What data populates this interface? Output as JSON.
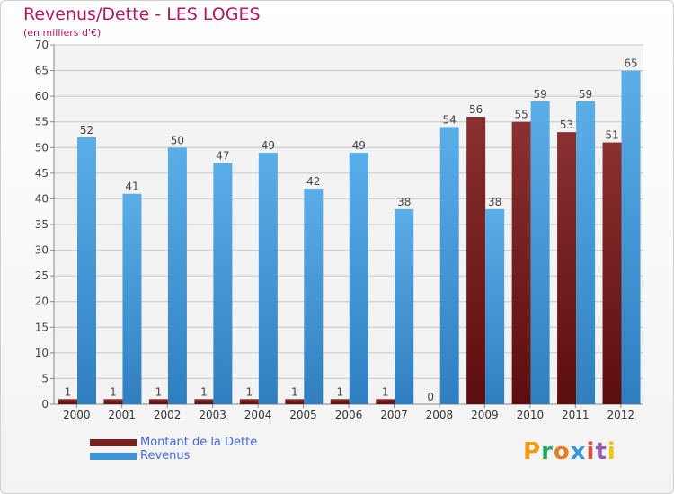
{
  "title": "Revenus/Dette - LES LOGES",
  "subtitle": "(en milliers d'€)",
  "logo": {
    "letters": [
      "P",
      "r",
      "o",
      "x",
      "i",
      "t",
      "i"
    ],
    "colors": [
      "#f39c12",
      "#27ae60",
      "#e67e22",
      "#3498db",
      "#e74c3c",
      "#9b59b6",
      "#f1c40f"
    ]
  },
  "colors": {
    "dette": "#7a1f1f",
    "revenus": "#3d95d6",
    "title": "#b5175e",
    "legend_text": "#4169e1"
  },
  "chart_data": {
    "type": "bar",
    "categories": [
      "2000",
      "2001",
      "2002",
      "2003",
      "2004",
      "2005",
      "2006",
      "2007",
      "2008",
      "2009",
      "2010",
      "2011",
      "2012"
    ],
    "series": [
      {
        "name": "Montant de la Dette",
        "values": [
          1,
          1,
          1,
          1,
          1,
          1,
          1,
          1,
          0,
          56,
          55,
          53,
          51
        ]
      },
      {
        "name": "Revenus",
        "values": [
          52,
          41,
          50,
          47,
          49,
          42,
          49,
          38,
          54,
          38,
          59,
          59,
          65
        ]
      }
    ],
    "ylim": [
      0,
      70
    ],
    "yticks": [
      0,
      5,
      10,
      15,
      20,
      25,
      30,
      35,
      40,
      45,
      50,
      55,
      60,
      65,
      70
    ],
    "grid": true,
    "legend": "bottom-left"
  }
}
